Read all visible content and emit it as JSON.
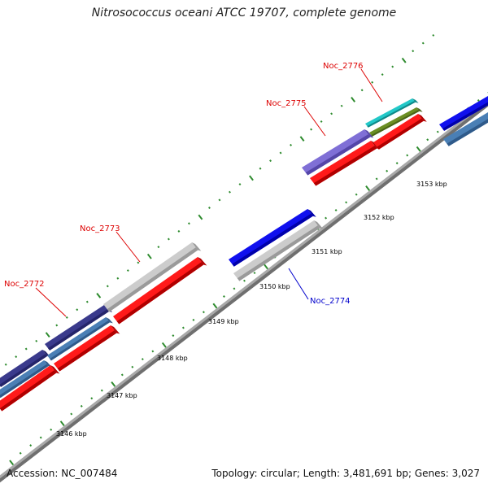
{
  "title": "Nitrosococcus oceani ATCC 19707, complete genome",
  "footer": {
    "accession": "Accession: NC_007484",
    "summary": "Topology: circular; Length: 3,481,691 bp; Genes: 3,027"
  },
  "colors": {
    "backbone": "#8a8a8a",
    "tick": "#2e8b2e",
    "label_red": "#dd0000",
    "label_blue": "#0000cc"
  },
  "tick_labels": [
    "3146 kbp",
    "3147 kbp",
    "3148 kbp",
    "3149 kbp",
    "3150 kbp",
    "3151 kbp",
    "3152 kbp",
    "3153 kbp"
  ],
  "gene_labels": [
    {
      "name": "Noc_2772",
      "color": "red"
    },
    {
      "name": "Noc_2773",
      "color": "red"
    },
    {
      "name": "Noc_2774",
      "color": "blue"
    },
    {
      "name": "Noc_2775",
      "color": "red"
    },
    {
      "name": "Noc_2776",
      "color": "red"
    }
  ]
}
